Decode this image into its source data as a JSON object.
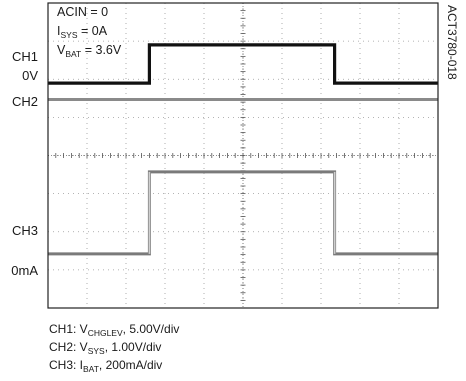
{
  "chart_data": {
    "type": "line",
    "title": "",
    "xlabel": "",
    "ylabel": "",
    "grid": true,
    "grid_divisions": {
      "x": 10,
      "y": 8
    },
    "conditions": [
      {
        "base": "ACIN = 0",
        "sub": "",
        "rest": ""
      },
      {
        "base": "I",
        "sub": "SYS",
        "rest": " = 0A"
      },
      {
        "base": "V",
        "sub": "BAT",
        "rest": " = 3.6V"
      }
    ],
    "figure_code": "ACT3780-018",
    "channel_labels": [
      {
        "name": "CH1",
        "ref_label": "0V"
      },
      {
        "name": "CH2",
        "ref_label": ""
      },
      {
        "name": "CH3",
        "ref_label": "0mA"
      }
    ],
    "legend": [
      {
        "prefix": "CH1: V",
        "sub": "CHGLEV",
        "suffix": ", 5.00V/div"
      },
      {
        "prefix": "CH2: V",
        "sub": "SYS",
        "suffix": ", 1.00V/div"
      },
      {
        "prefix": "CH3: I",
        "sub": "BAT",
        "suffix": ", 200mA/div"
      }
    ],
    "series": [
      {
        "name": "CH1",
        "x_div": [
          0,
          2.6,
          2.6,
          7.35,
          7.35,
          10
        ],
        "y_div": [
          -0.05,
          -0.05,
          0.95,
          0.95,
          -0.05,
          -0.05
        ],
        "color": "#111111"
      },
      {
        "name": "CH2",
        "x_div": [
          0,
          10
        ],
        "y_div": [
          0,
          0
        ],
        "color": "#8a8a8a"
      },
      {
        "name": "CH3",
        "x_div": [
          0,
          2.6,
          2.6,
          7.35,
          7.35,
          10
        ],
        "y_div": [
          -0.05,
          -0.05,
          2.1,
          2.1,
          -0.05,
          -0.05
        ],
        "color": "#7a7a7a"
      }
    ]
  }
}
